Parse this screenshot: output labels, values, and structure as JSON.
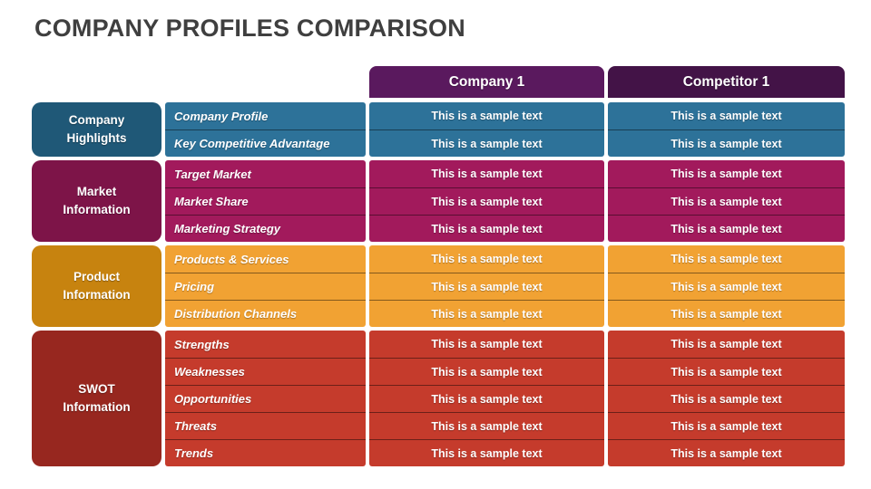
{
  "page": {
    "title": "COMPANY PROFILES COMPARISON"
  },
  "colors": {
    "title_text": "#3F3F3F",
    "cell_text": "#FFFFFF"
  },
  "columns": [
    {
      "id": "company1",
      "label": "Company 1",
      "header_bg": "#5A195E"
    },
    {
      "id": "competitor1",
      "label": "Competitor 1",
      "header_bg": "#431347"
    }
  ],
  "sections": [
    {
      "name": "Company Highlights",
      "group_bg": "#1F5877",
      "row_bg": "#2D7299",
      "rows": [
        {
          "label": "Company Profile",
          "company1": "This is a sample text",
          "competitor1": "This is a sample text"
        },
        {
          "label": "Key Competitive Advantage",
          "company1": "This is a sample text",
          "competitor1": "This is a sample text"
        }
      ]
    },
    {
      "name": "Market Information",
      "group_bg": "#7D1448",
      "row_bg": "#A21A5C",
      "rows": [
        {
          "label": "Target Market",
          "company1": "This is a sample text",
          "competitor1": "This is a sample text"
        },
        {
          "label": "Market Share",
          "company1": "This is a sample text",
          "competitor1": "This is a sample text"
        },
        {
          "label": "Marketing Strategy",
          "company1": "This is a sample text",
          "competitor1": "This is a sample text"
        }
      ]
    },
    {
      "name": "Product Information",
      "group_bg": "#C7830F",
      "row_bg": "#F1A233",
      "rows": [
        {
          "label": "Products & Services",
          "company1": "This is a sample text",
          "competitor1": "This is a sample text"
        },
        {
          "label": "Pricing",
          "company1": "This is a sample text",
          "competitor1": "This is a sample text"
        },
        {
          "label": "Distribution Channels",
          "company1": "This is a sample text",
          "competitor1": "This is a sample text"
        }
      ]
    },
    {
      "name": "SWOT Information",
      "group_bg": "#97271F",
      "row_bg": "#C53B2C",
      "rows": [
        {
          "label": "Strengths",
          "company1": "This is a sample text",
          "competitor1": "This is a sample text"
        },
        {
          "label": "Weaknesses",
          "company1": "This is a sample text",
          "competitor1": "This is a sample text"
        },
        {
          "label": "Opportunities",
          "company1": "This is a sample text",
          "competitor1": "This is a sample text"
        },
        {
          "label": "Threats",
          "company1": "This is a sample text",
          "competitor1": "This is a sample text"
        },
        {
          "label": "Trends",
          "company1": "This is a sample text",
          "competitor1": "This is a sample text"
        }
      ]
    }
  ]
}
